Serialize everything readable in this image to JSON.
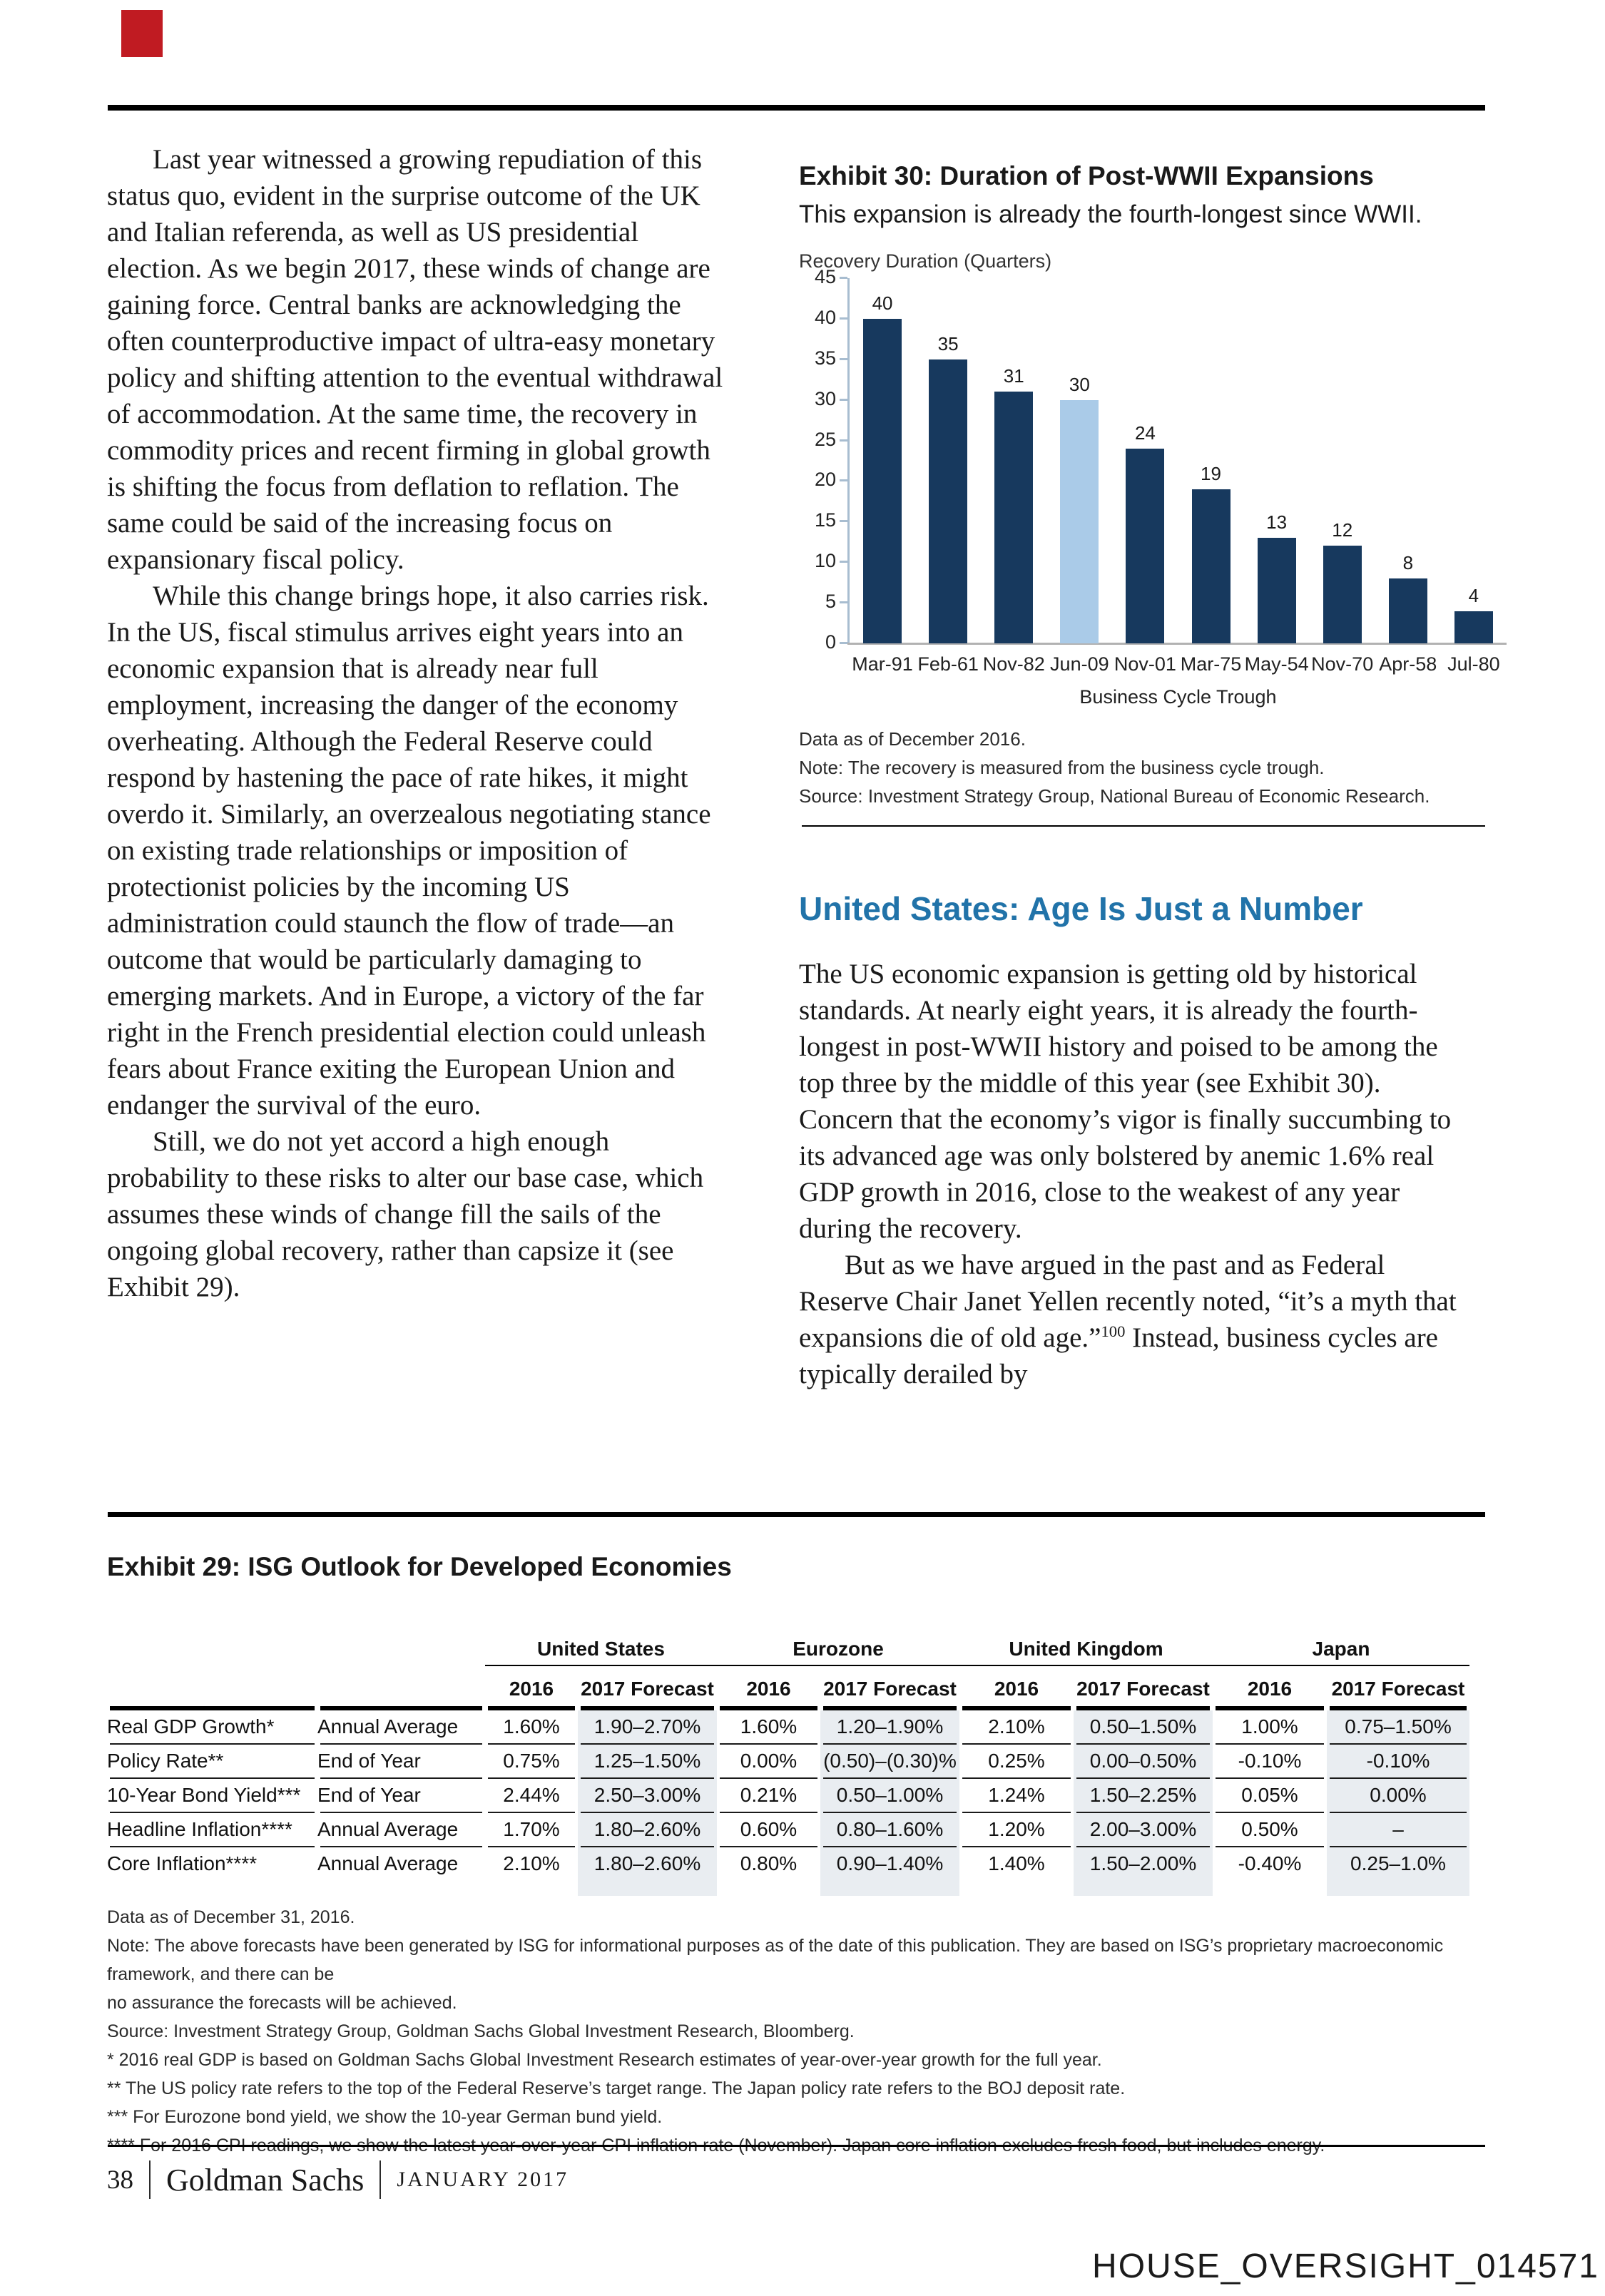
{
  "page": {
    "bates": "HOUSE_OVERSIGHT_014571",
    "footer": {
      "page_number": "38",
      "brand": "Goldman Sachs",
      "date": "JANUARY 2017"
    }
  },
  "left_column": {
    "paragraphs": [
      "Last year witnessed a growing repudiation of this status quo, evident in the surprise outcome of the UK and Italian referenda, as well as US presidential election. As we begin 2017, these winds of change are gaining force. Central banks are acknowledging the often counterproductive impact of ultra-easy monetary policy and shifting attention to the eventual withdrawal of accommodation. At the same time, the recovery in commodity prices and recent firming in global growth is shifting the focus from deflation to reflation. The same could be said of the increasing focus on expansionary fiscal policy.",
      "While this change brings hope, it also carries risk. In the US, fiscal stimulus arrives eight years into an economic expansion that is already near full employment, increasing the danger of the economy overheating. Although the Federal Reserve could respond by hastening the pace of rate hikes, it might overdo it. Similarly, an overzealous negotiating stance on existing trade relationships or imposition of protectionist policies by the incoming US administration could staunch the flow of trade—an outcome that would be particularly damaging to emerging markets. And in Europe, a victory of the far right in the French presidential election could unleash fears about France exiting the European Union and endanger the survival of the euro.",
      "Still, we do not yet accord a high enough probability to these risks to alter our base case, which assumes these winds of change fill the sails of the ongoing global recovery, rather than capsize it (see Exhibit 29)."
    ]
  },
  "exhibit30": {
    "title": "Exhibit 30: Duration of Post-WWII Expansions",
    "subtitle": "This expansion is already the fourth-longest since WWII.",
    "notes": [
      "Data as of December 2016.",
      "Note: The recovery is measured from the business cycle trough.",
      "Source: Investment Strategy Group, National Bureau of Economic Research."
    ]
  },
  "chart_data": {
    "type": "bar",
    "title": "Exhibit 30: Duration of Post-WWII Expansions",
    "ylabel": "Recovery Duration (Quarters)",
    "xlabel": "Business Cycle Trough",
    "categories": [
      "Mar-91",
      "Feb-61",
      "Nov-82",
      "Jun-09",
      "Nov-01",
      "Mar-75",
      "May-54",
      "Nov-70",
      "Apr-58",
      "Jul-80"
    ],
    "values": [
      40,
      35,
      31,
      30,
      24,
      19,
      13,
      12,
      8,
      4
    ],
    "highlight_index": 3,
    "bar_color": "#17395e",
    "highlight_color": "#aacbe8",
    "yticks": [
      45,
      40,
      35,
      30,
      25,
      20,
      15,
      10,
      5,
      0
    ],
    "ylim": [
      0,
      45
    ],
    "grid": false,
    "legend_position": "none"
  },
  "section": {
    "heading": "United States: Age Is Just a Number",
    "heading_color": "#2173a9",
    "paragraph_1": "The US economic expansion is getting old by historical standards. At nearly eight years, it is already the fourth-longest in post-WWII history and poised to be among the top three by the middle of this year (see Exhibit 30). Concern that the economy’s vigor is finally succumbing to its advanced age was only bolstered by anemic 1.6% real GDP growth in 2016, close to the weakest of any year during the recovery.",
    "paragraph_2_pre": "But as we have argued in the past and as Federal Reserve Chair Janet Yellen recently noted, “it’s a myth that expansions die of old age.”",
    "paragraph_2_sup": "100",
    "paragraph_2_post": " Instead, business cycles are typically derailed by"
  },
  "exhibit29": {
    "title": "Exhibit 29: ISG Outlook for Developed Economies",
    "groups": [
      "United States",
      "Eurozone",
      "United Kingdom",
      "Japan"
    ],
    "sub_headers": [
      "2016",
      "2017 Forecast"
    ],
    "shade_color": "#e9edf1",
    "rows": [
      {
        "label": "Real GDP Growth*",
        "basis": "Annual Average",
        "values": [
          "1.60%",
          "1.90–2.70%",
          "1.60%",
          "1.20–1.90%",
          "2.10%",
          "0.50–1.50%",
          "1.00%",
          "0.75–1.50%"
        ]
      },
      {
        "label": "Policy Rate**",
        "basis": "End of Year",
        "values": [
          "0.75%",
          "1.25–1.50%",
          "0.00%",
          "(0.50)–(0.30)%",
          "0.25%",
          "0.00–0.50%",
          "-0.10%",
          "-0.10%"
        ]
      },
      {
        "label": "10-Year Bond Yield***",
        "basis": "End of Year",
        "values": [
          "2.44%",
          "2.50–3.00%",
          "0.21%",
          "0.50–1.00%",
          "1.24%",
          "1.50–2.25%",
          "0.05%",
          "0.00%"
        ]
      },
      {
        "label": "Headline Inflation****",
        "basis": "Annual Average",
        "values": [
          "1.70%",
          "1.80–2.60%",
          "0.60%",
          "0.80–1.60%",
          "1.20%",
          "2.00–3.00%",
          "0.50%",
          "–"
        ]
      },
      {
        "label": "Core Inflation****",
        "basis": "Annual Average",
        "values": [
          "2.10%",
          "1.80–2.60%",
          "0.80%",
          "0.90–1.40%",
          "1.40%",
          "1.50–2.00%",
          "-0.40%",
          "0.25–1.0%"
        ]
      }
    ],
    "footnotes": [
      "Data as of December 31, 2016.",
      "Note: The above forecasts have been generated by ISG for informational purposes as of the date of this publication. They are based on ISG’s proprietary macroeconomic framework, and there can be",
      "no assurance the forecasts will be achieved.",
      "Source: Investment Strategy Group, Goldman Sachs Global Investment Research, Bloomberg.",
      "* 2016 real GDP is based on Goldman Sachs Global Investment Research estimates of year-over-year growth for the full year.",
      "** The US policy rate refers to the top of the Federal Reserve’s target range. The Japan policy rate refers to the BOJ deposit rate.",
      "*** For Eurozone bond yield, we show the 10-year German bund yield.",
      "**** For 2016 CPI readings, we show the latest year-over-year CPI inflation rate (November). Japan core inflation excludes fresh food, but includes energy."
    ]
  }
}
